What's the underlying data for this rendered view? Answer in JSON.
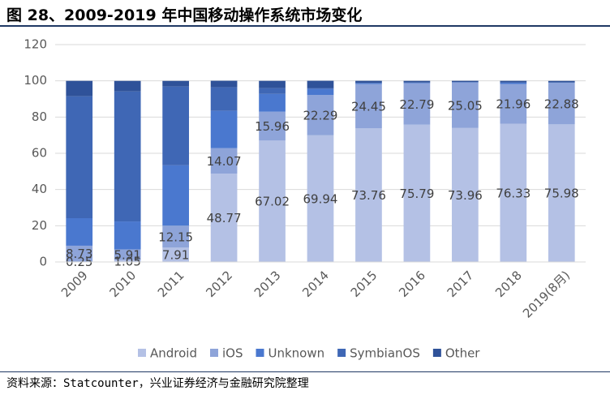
{
  "header": {
    "title": "图 28、2009-2019 年中国移动操作系统市场变化"
  },
  "chart_data": {
    "type": "stacked_bar",
    "categories": [
      "2009",
      "2010",
      "2011",
      "2012",
      "2013",
      "2014",
      "2015",
      "2016",
      "2017",
      "2018",
      "2019(8月)"
    ],
    "series": [
      {
        "name": "Android",
        "color": "#b4c1e5",
        "data_labels": true,
        "values": [
          0.25,
          1.05,
          7.91,
          48.77,
          67.02,
          69.94,
          73.76,
          75.79,
          73.96,
          76.33,
          75.98
        ]
      },
      {
        "name": "iOS",
        "color": "#8ea4d9",
        "data_labels": true,
        "values": [
          8.73,
          5.91,
          12.15,
          14.07,
          15.96,
          22.29,
          24.45,
          22.79,
          25.05,
          21.96,
          22.88
        ]
      },
      {
        "name": "Unknown",
        "color": "#4a78cf",
        "values": [
          15.2,
          15.4,
          33.3,
          20.6,
          9.8,
          3.3,
          0.5,
          0.3,
          0.2,
          0.7,
          0.2
        ]
      },
      {
        "name": "SymbianOS",
        "color": "#3f67b5",
        "values": [
          67.3,
          71.8,
          43.5,
          13.0,
          3.2,
          0.5,
          0.2,
          0.2,
          0.1,
          0.2,
          0.1
        ]
      },
      {
        "name": "Other",
        "color": "#2f5299",
        "values": [
          8.5,
          5.8,
          3.1,
          3.6,
          4.0,
          4.0,
          1.1,
          0.9,
          0.7,
          0.8,
          0.8
        ]
      }
    ],
    "ylim": [
      0,
      120
    ],
    "yticks": [
      0,
      20,
      40,
      60,
      80,
      100,
      120
    ],
    "grid": true,
    "legend": "bottom"
  },
  "footer": {
    "source": "资料来源：Statcounter，兴业证券经济与金融研究院整理"
  }
}
